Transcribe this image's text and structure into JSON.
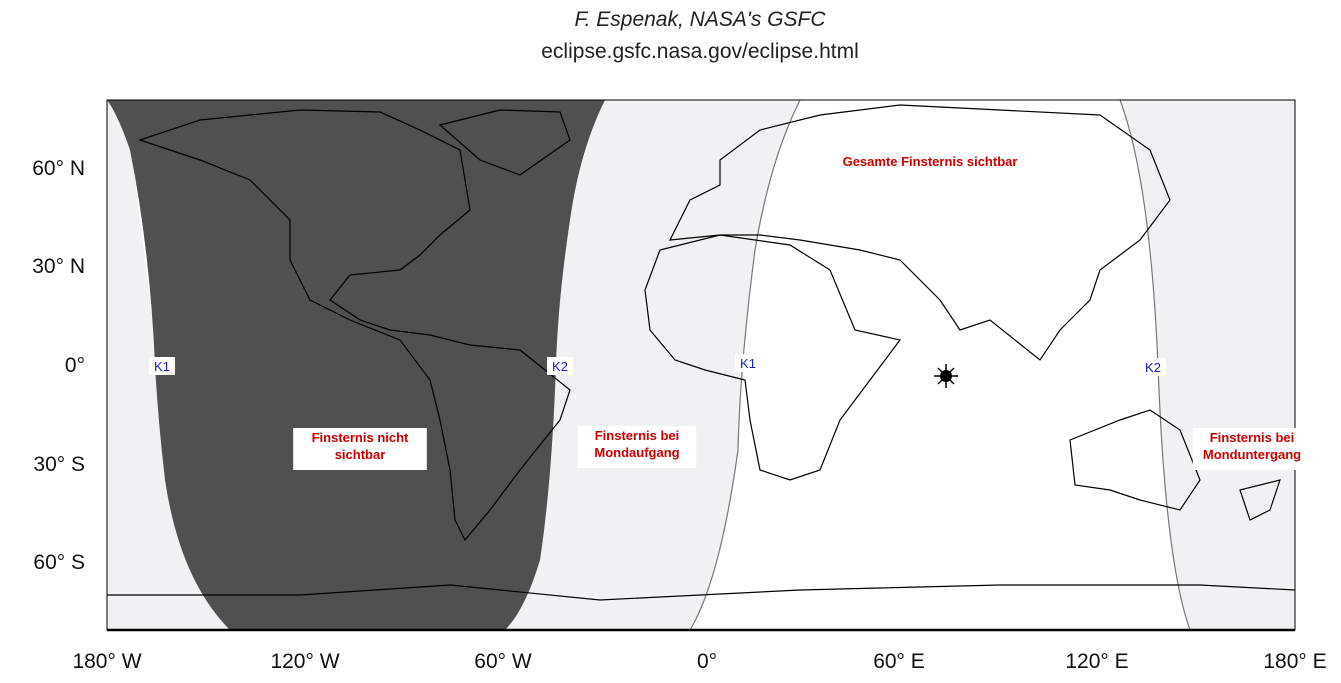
{
  "header": {
    "author": "F. Espenak, NASA's GSFC",
    "url": "eclipse.gsfc.nasa.gov/eclipse.html"
  },
  "axes": {
    "y_labels": [
      "60° N",
      "30° N",
      "0°",
      "30° S",
      "60° S"
    ],
    "x_labels": [
      "180° W",
      "120° W",
      "60° W",
      "0°",
      "60° E",
      "120° E",
      "180° E"
    ]
  },
  "regions": [
    {
      "lines": [
        "Gesamte Finsternis sichtbar"
      ]
    },
    {
      "lines": [
        "Finsternis nicht",
        "sichtbar"
      ]
    },
    {
      "lines": [
        "Finsternis bei",
        "Mondaufgang"
      ]
    },
    {
      "lines": [
        "Finsternis bei",
        "Monduntergang"
      ]
    }
  ],
  "contacts": [
    "K1",
    "K2",
    "K1",
    "K2"
  ]
}
